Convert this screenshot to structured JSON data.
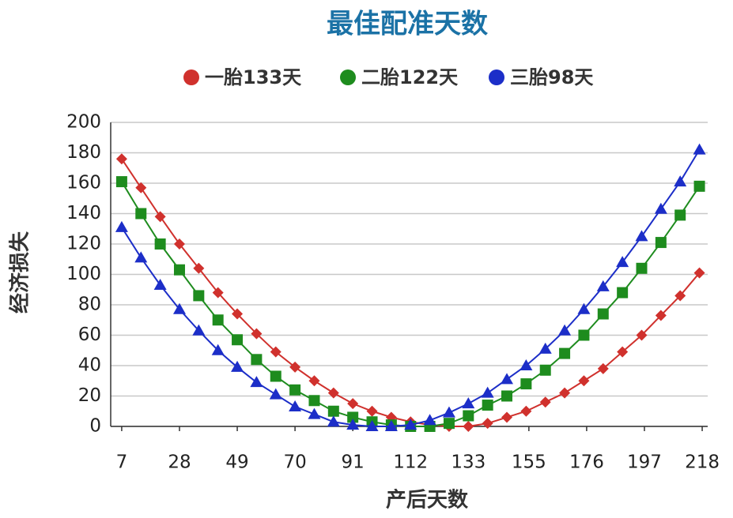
{
  "chart_data": {
    "type": "line",
    "title": "最佳配准天数",
    "x_label": "产后天数",
    "y_label": "经济损失",
    "x": [
      7,
      14,
      21,
      28,
      35,
      42,
      49,
      56,
      63,
      70,
      77,
      84,
      91,
      98,
      105,
      112,
      119,
      126,
      133,
      140,
      147,
      154,
      161,
      168,
      175,
      182,
      189,
      196,
      203,
      210,
      217
    ],
    "series": [
      {
        "name": "一胎133天",
        "color": "#d0312d",
        "marker": "diamond",
        "values": [
          176,
          157,
          138,
          120,
          104,
          88,
          74,
          61,
          49,
          39,
          30,
          22,
          15,
          10,
          6,
          3,
          1,
          0,
          0,
          2,
          6,
          10,
          16,
          22,
          30,
          38,
          49,
          60,
          73,
          86,
          101
        ]
      },
      {
        "name": "二胎122天",
        "color": "#1e8c1e",
        "marker": "square",
        "values": [
          161,
          140,
          120,
          103,
          86,
          70,
          57,
          44,
          33,
          24,
          17,
          10,
          6,
          3,
          1,
          0,
          0,
          2,
          7,
          14,
          20,
          28,
          37,
          48,
          60,
          74,
          88,
          104,
          121,
          139,
          158
        ]
      },
      {
        "name": "三胎98天",
        "color": "#1c2ec8",
        "marker": "triangle",
        "values": [
          131,
          111,
          93,
          77,
          63,
          50,
          39,
          29,
          21,
          13,
          8,
          3,
          1,
          0,
          0,
          1,
          4,
          9,
          15,
          22,
          31,
          40,
          51,
          63,
          77,
          92,
          108,
          125,
          143,
          161,
          182
        ]
      }
    ],
    "xlim": [
      3,
      220
    ],
    "xticks": [
      7,
      28,
      49,
      70,
      91,
      112,
      133,
      155,
      176,
      197,
      218
    ],
    "ylim": [
      0,
      200
    ],
    "yticks": [
      0,
      20,
      40,
      60,
      80,
      100,
      120,
      140,
      160,
      180,
      200
    ],
    "grid": true,
    "legend": "top"
  }
}
